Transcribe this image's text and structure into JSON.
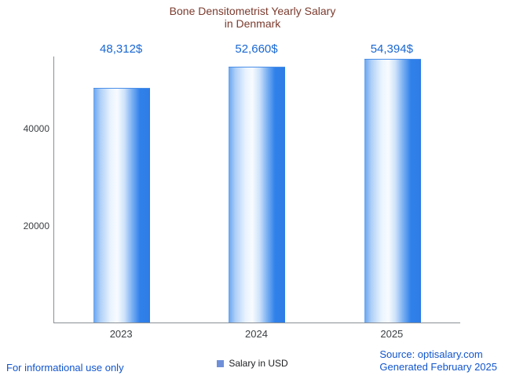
{
  "chart_data": {
    "type": "bar",
    "title": "Bone Densitometrist Yearly Salary in Denmark",
    "title_lines": [
      "Bone Densitometrist Yearly Salary",
      "in Denmark"
    ],
    "categories": [
      "2023",
      "2024",
      "2025"
    ],
    "values": [
      48312,
      52660,
      54394
    ],
    "value_labels": [
      "48,312$",
      "52,660$",
      "54,394$"
    ],
    "series": [
      {
        "name": "Salary in USD",
        "values": [
          48312,
          52660,
          54394
        ]
      }
    ],
    "legend": [
      "Salary in USD"
    ],
    "legend_position": "bottom",
    "xlabel": "",
    "ylabel": "",
    "ylim": [
      0,
      55000
    ],
    "ytick_labels": [
      "20000",
      "40000"
    ],
    "ytick_values": [
      20000,
      40000
    ],
    "grid": false
  },
  "colors": {
    "title": "#7b3b2e",
    "value_label": "#1967d2",
    "bar_blue": "#2e7ce6",
    "legend_square": "#6f8fd8",
    "link_blue": "#1155cc",
    "axis": "#8a8f94"
  },
  "footer": {
    "disclaimer": "For informational use only",
    "source": "Source: optisalary.com",
    "generated": "Generated February 2025"
  }
}
